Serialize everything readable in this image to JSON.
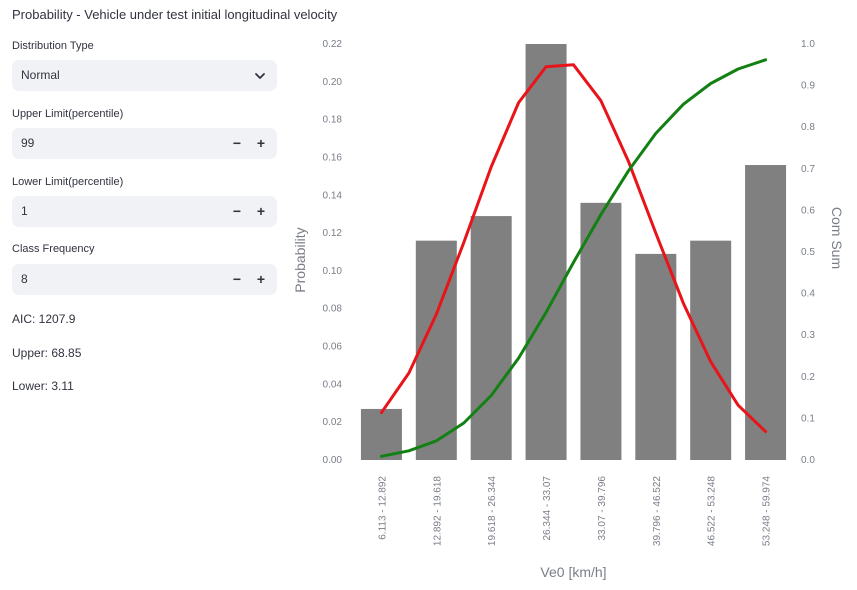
{
  "page_title": "Probability - Vehicle under test initial longitudinal velocity",
  "controls": {
    "distribution_type": {
      "label": "Distribution Type",
      "value": "Normal"
    },
    "upper_limit": {
      "label": "Upper Limit(percentile)",
      "value": "99"
    },
    "lower_limit": {
      "label": "Lower Limit(percentile)",
      "value": "1"
    },
    "class_frequency": {
      "label": "Class Frequency",
      "value": "8"
    },
    "minus_symbol": "−",
    "plus_symbol": "+"
  },
  "stats": {
    "aic": "AIC: 1207.9",
    "upper": "Upper: 68.85",
    "lower": "Lower: 3.11"
  },
  "colors": {
    "bar": "#808080",
    "pdf_line": "#e8141a",
    "cdf_line": "#128012",
    "control_bg": "#f0f2f6"
  },
  "icons": {
    "dropdown": "chevron-down-icon"
  },
  "chart_data": {
    "type": "bar",
    "title": "",
    "xlabel": "Ve0 [km/h]",
    "ylabel": "Probability",
    "y2label": "Com Sum",
    "categories": [
      "6.113 - 12.892",
      "12.892 - 19.618",
      "19.618 - 26.344",
      "26.344 - 33.07",
      "33.07 - 39.796",
      "39.796 - 46.522",
      "46.522 - 53.248",
      "53.248 - 59.974"
    ],
    "ylim": [
      0,
      0.22
    ],
    "y_ticks": [
      "0.00",
      "0.02",
      "0.04",
      "0.06",
      "0.08",
      "0.10",
      "0.12",
      "0.14",
      "0.16",
      "0.18",
      "0.20",
      "0.22"
    ],
    "y2lim": [
      0,
      1.0
    ],
    "y2_ticks": [
      "0.0",
      "0.1",
      "0.2",
      "0.3",
      "0.4",
      "0.5",
      "0.6",
      "0.7",
      "0.8",
      "0.9",
      "1.0"
    ],
    "values": [
      0.027,
      0.116,
      0.129,
      0.22,
      0.136,
      0.109,
      0.116,
      0.156
    ],
    "lines": [
      {
        "axis": "left",
        "color": "#e8141a",
        "x": [
          0,
          0.5,
          1,
          1.5,
          2,
          2.5,
          3,
          3.5,
          4,
          4.5,
          5,
          5.5,
          6,
          6.5,
          7
        ],
        "y": [
          0.025,
          0.046,
          0.077,
          0.115,
          0.155,
          0.189,
          0.208,
          0.209,
          0.19,
          0.158,
          0.12,
          0.083,
          0.052,
          0.029,
          0.015
        ]
      },
      {
        "axis": "right",
        "color": "#128012",
        "x": [
          0,
          0.5,
          1,
          1.5,
          2,
          2.5,
          3,
          3.5,
          4,
          4.5,
          5,
          5.5,
          6,
          6.5,
          7
        ],
        "y": [
          0.009,
          0.022,
          0.046,
          0.089,
          0.155,
          0.245,
          0.355,
          0.475,
          0.59,
          0.695,
          0.785,
          0.855,
          0.905,
          0.94,
          0.962
        ]
      }
    ],
    "grid": false,
    "legend": "none"
  }
}
